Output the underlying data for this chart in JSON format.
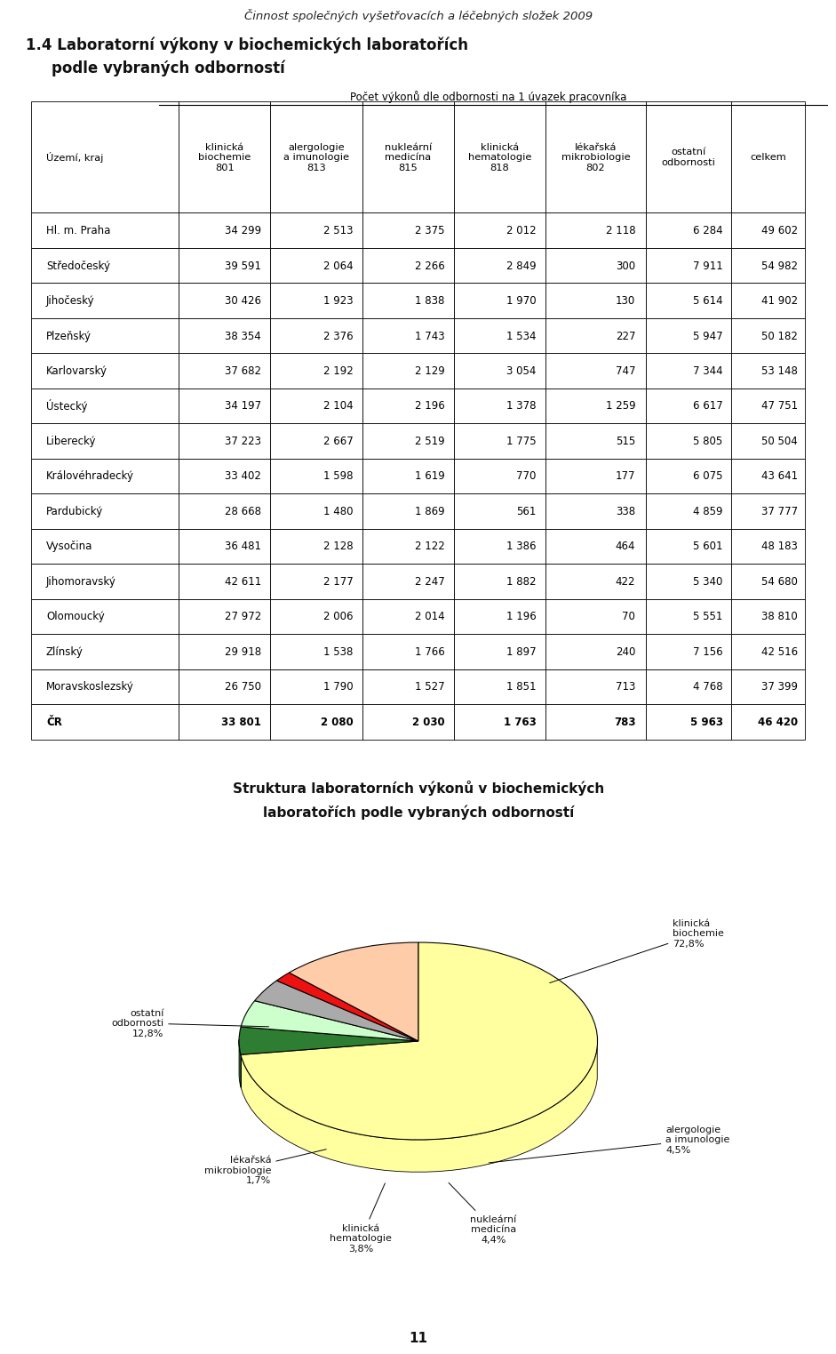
{
  "page_title": "Činnost společných vyšetřovacích a léčebných složek 2009",
  "section_title_line1": "1.4 Laboratorní výkony v biochemických laboratořích",
  "section_title_line2": "    podle vybraných odborností",
  "table_header_span": "Počet výkonů dle odbornosti na 1 úvazek pracovníka",
  "col_headers": [
    "Území, kraj",
    "klinická\nbiochemie\n801",
    "alergologie\na imunologie\n813",
    "nukleární\nmedicína\n815",
    "klinická\nhematologie\n818",
    "lékařská\nmikrobiologie\n802",
    "ostatní\nodbornosti",
    "celkem"
  ],
  "rows": [
    [
      "Hl. m. Praha",
      "34 299",
      "2 513",
      "2 375",
      "2 012",
      "2 118",
      "6 284",
      "49 602"
    ],
    [
      "Středočeský",
      "39 591",
      "2 064",
      "2 266",
      "2 849",
      "300",
      "7 911",
      "54 982"
    ],
    [
      "Jihočeský",
      "30 426",
      "1 923",
      "1 838",
      "1 970",
      "130",
      "5 614",
      "41 902"
    ],
    [
      "Plzeňský",
      "38 354",
      "2 376",
      "1 743",
      "1 534",
      "227",
      "5 947",
      "50 182"
    ],
    [
      "Karlovarský",
      "37 682",
      "2 192",
      "2 129",
      "3 054",
      "747",
      "7 344",
      "53 148"
    ],
    [
      "Ústecký",
      "34 197",
      "2 104",
      "2 196",
      "1 378",
      "1 259",
      "6 617",
      "47 751"
    ],
    [
      "Liberecký",
      "37 223",
      "2 667",
      "2 519",
      "1 775",
      "515",
      "5 805",
      "50 504"
    ],
    [
      "Královéhradecký",
      "33 402",
      "1 598",
      "1 619",
      "770",
      "177",
      "6 075",
      "43 641"
    ],
    [
      "Pardubický",
      "28 668",
      "1 480",
      "1 869",
      "561",
      "338",
      "4 859",
      "37 777"
    ],
    [
      "Vysočina",
      "36 481",
      "2 128",
      "2 122",
      "1 386",
      "464",
      "5 601",
      "48 183"
    ],
    [
      "Jihomoravský",
      "42 611",
      "2 177",
      "2 247",
      "1 882",
      "422",
      "5 340",
      "54 680"
    ],
    [
      "Olomoucký",
      "27 972",
      "2 006",
      "2 014",
      "1 196",
      "70",
      "5 551",
      "38 810"
    ],
    [
      "Zlínský",
      "29 918",
      "1 538",
      "1 766",
      "1 897",
      "240",
      "7 156",
      "42 516"
    ],
    [
      "Moravskoslezský",
      "26 750",
      "1 790",
      "1 527",
      "1 851",
      "713",
      "4 768",
      "37 399"
    ],
    [
      "ČR",
      "33 801",
      "2 080",
      "2 030",
      "1 763",
      "783",
      "5 963",
      "46 420"
    ]
  ],
  "pie_title_line1": "Struktura laboratorních výkonů v biochemických",
  "pie_title_line2": "laboratořích podle vybraných odborností",
  "pie_values": [
    72.8,
    4.5,
    4.4,
    3.8,
    1.7,
    12.8
  ],
  "pie_colors": [
    "#FFFFA0",
    "#2D7D32",
    "#CCFFCC",
    "#AAAAAA",
    "#EE1111",
    "#FFCCAA"
  ],
  "pie_pct_labels": [
    "72,8%",
    "4,5%",
    "4,4%",
    "3,8%",
    "1,7%",
    "12,8%"
  ],
  "pie_annotation_labels": [
    "klinická\nbiochemie",
    "alergologie\na imunologie",
    "nukleární\nmedicína",
    "klinická\nhematologie",
    "lékařská\nmikrobiologie",
    "ostatní\nodbornosti"
  ],
  "page_number": "11",
  "background_color": "#ffffff"
}
